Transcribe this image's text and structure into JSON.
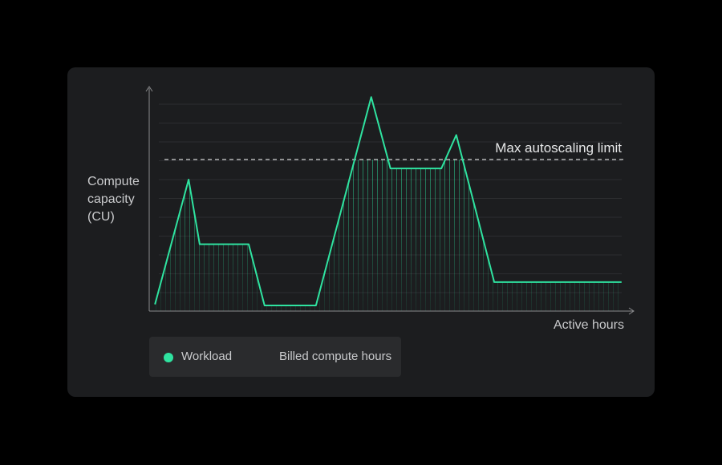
{
  "chart_data": {
    "type": "line",
    "xlabel": "Active hours",
    "ylabel": "Compute capacity (CU)",
    "xlim": [
      0,
      100
    ],
    "ylim": [
      0,
      10
    ],
    "series": [
      {
        "name": "Workload",
        "color": "#2fe3a0",
        "x": [
          1.2,
          8.2,
          10.5,
          20.7,
          24,
          34.7,
          46.2,
          50.2,
          60.8,
          63.9,
          71.8,
          98.3
        ],
        "values": [
          0.3,
          5.9,
          3.0,
          3.0,
          0.25,
          0.25,
          9.6,
          6.4,
          6.4,
          7.9,
          1.3,
          1.3
        ]
      }
    ],
    "limit": {
      "label": "Max autoscaling limit",
      "value": 6.8
    },
    "billed": {
      "name": "Billed compute hours"
    }
  }
}
